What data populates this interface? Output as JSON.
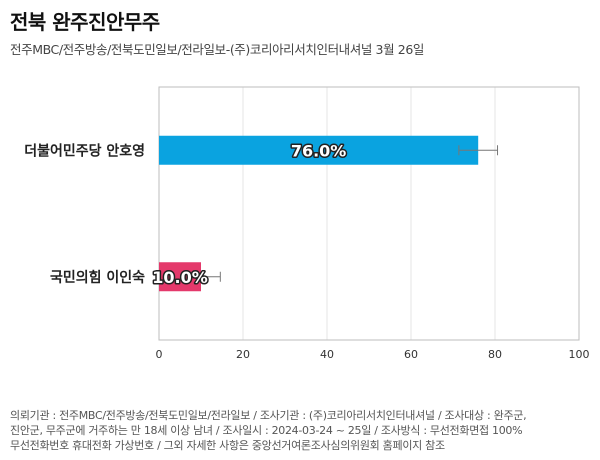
{
  "header": {
    "title": "전북 완주진안무주",
    "subtitle": "전주MBC/전주방송/전북도민일보/전라일보-(주)코리아리서치인터내셔널 3월 26일"
  },
  "chart_data": {
    "type": "bar",
    "orientation": "horizontal",
    "categories": [
      "더불어민주당 안호영",
      "국민의힘 이인숙"
    ],
    "values": [
      76.0,
      10.0
    ],
    "value_labels": [
      "76.0%",
      "10.0%"
    ],
    "error_high": [
      80.6,
      14.6
    ],
    "error_low": [
      71.4,
      10.0
    ],
    "colors": [
      "#0aa3e0",
      "#e4396b"
    ],
    "xlim": [
      0,
      100
    ],
    "xticks": [
      0,
      20,
      40,
      60,
      80,
      100
    ],
    "xtick_labels": [
      "0",
      "20",
      "40",
      "60",
      "80",
      "100"
    ],
    "grid": true,
    "title": "",
    "xlabel": "",
    "ylabel": ""
  },
  "footnote": {
    "lines": [
      "의뢰기관 : 전주MBC/전주방송/전북도민일보/전라일보 / 조사기관 : (주)코리아리서치인터내셔널 / 조사대상 : 완주군,",
      "진안군, 무주군에 거주하는 만 18세 이상 남녀 / 조사일시 : 2024-03-24 ~ 25일 / 조사방식 : 무선전화면접 100%",
      "무선전화번호 휴대전화 가상번호 / 그외 자세한 사항은 중앙선거여론조사심의위원회 홈페이지 참조"
    ]
  }
}
